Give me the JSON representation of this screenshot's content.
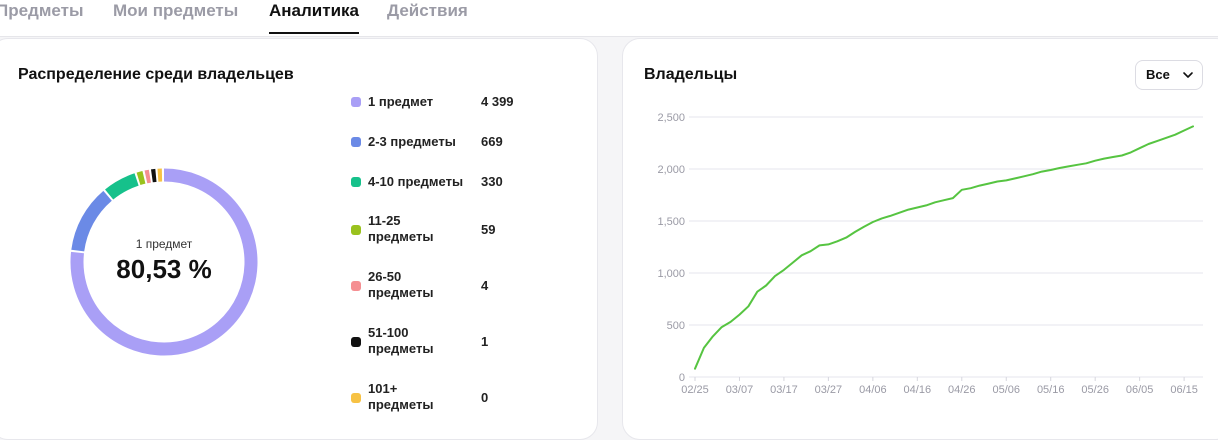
{
  "tabs": [
    {
      "label": "Предметы",
      "active": false
    },
    {
      "label": "Мои предметы",
      "active": false
    },
    {
      "label": "Аналитика",
      "active": true
    },
    {
      "label": "Действия",
      "active": false
    }
  ],
  "distribution": {
    "title": "Распределение среди владельцев",
    "center_caption": "1 предмет",
    "center_value": "80,53 %",
    "items": [
      {
        "label": "1 предмет",
        "value": "4 399",
        "count": 4399,
        "color": "#a99ff6"
      },
      {
        "label": "2-3 предметы",
        "value": "669",
        "count": 669,
        "color": "#6b8ae6"
      },
      {
        "label": "4-10 предметы",
        "value": "330",
        "count": 330,
        "color": "#16c18b"
      },
      {
        "label": "11-25 предметы",
        "value": "59",
        "count": 59,
        "color": "#9ac21e"
      },
      {
        "label": "26-50 предметы",
        "value": "4",
        "count": 4,
        "color": "#f58f92"
      },
      {
        "label": "51-100 предметы",
        "value": "1",
        "count": 1,
        "color": "#111111"
      },
      {
        "label": "101+ предметы",
        "value": "0",
        "count": 0,
        "color": "#f7c244"
      }
    ]
  },
  "owners": {
    "title": "Владельцы",
    "filter_label": "Все"
  },
  "chart_data": {
    "type": "line",
    "title": "Владельцы",
    "xlabel": "",
    "ylabel": "",
    "color": "#56c441",
    "grid": true,
    "x_tick_labels": [
      "02/25",
      "03/07",
      "03/17",
      "03/27",
      "04/06",
      "04/16",
      "04/26",
      "05/06",
      "05/16",
      "05/26",
      "06/05",
      "06/15"
    ],
    "y_ticks": [
      0,
      500,
      1000,
      1500,
      2000,
      2500
    ],
    "y_tick_labels": [
      "0",
      "500",
      "1,000",
      "1,500",
      "2,000",
      "2,500"
    ],
    "ylim": [
      0,
      2500
    ],
    "series": [
      {
        "x": [
          "02/25",
          "02/27",
          "03/01",
          "03/03",
          "03/05",
          "03/07",
          "03/09",
          "03/11",
          "03/13",
          "03/15",
          "03/17",
          "03/19",
          "03/21",
          "03/23",
          "03/25",
          "03/27",
          "03/29",
          "03/31",
          "04/02",
          "04/04",
          "04/06",
          "04/08",
          "04/10",
          "04/12",
          "04/14",
          "04/16",
          "04/18",
          "04/20",
          "04/22",
          "04/24",
          "04/26",
          "04/28",
          "04/30",
          "05/02",
          "05/04",
          "05/06",
          "05/08",
          "05/10",
          "05/12",
          "05/14",
          "05/16",
          "05/18",
          "05/20",
          "05/22",
          "05/24",
          "05/26",
          "05/28",
          "05/30",
          "06/01",
          "06/03",
          "06/05",
          "06/07",
          "06/09",
          "06/11",
          "06/13",
          "06/15",
          "06/17"
        ],
        "y": [
          80,
          280,
          390,
          480,
          530,
          600,
          680,
          820,
          880,
          970,
          1030,
          1100,
          1170,
          1210,
          1265,
          1275,
          1305,
          1340,
          1395,
          1445,
          1490,
          1525,
          1550,
          1580,
          1610,
          1630,
          1650,
          1680,
          1700,
          1720,
          1800,
          1815,
          1840,
          1860,
          1880,
          1890,
          1910,
          1930,
          1950,
          1975,
          1990,
          2010,
          2025,
          2040,
          2055,
          2080,
          2100,
          2115,
          2130,
          2160,
          2200,
          2240,
          2270,
          2300,
          2330,
          2370,
          2410
        ]
      }
    ]
  }
}
